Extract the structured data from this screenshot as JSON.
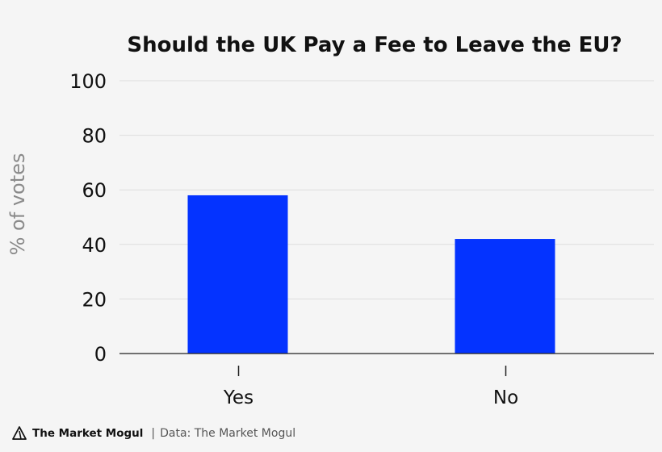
{
  "chart_data": {
    "type": "bar",
    "title": "Should the UK Pay a Fee to Leave the EU?",
    "ylabel": "% of votes",
    "xlabel": "",
    "categories": [
      "Yes",
      "No"
    ],
    "values": [
      58,
      42
    ],
    "ylim": [
      0,
      100
    ],
    "yticks": [
      "0",
      "20",
      "40",
      "60",
      "80",
      "100"
    ],
    "grid": true,
    "bar_color": "#0433ff"
  },
  "footer": {
    "brand": "The Market Mogul",
    "separator": "|",
    "source": "Data: The Market Mogul",
    "brand_icon": "market-mogul-logo-icon"
  }
}
